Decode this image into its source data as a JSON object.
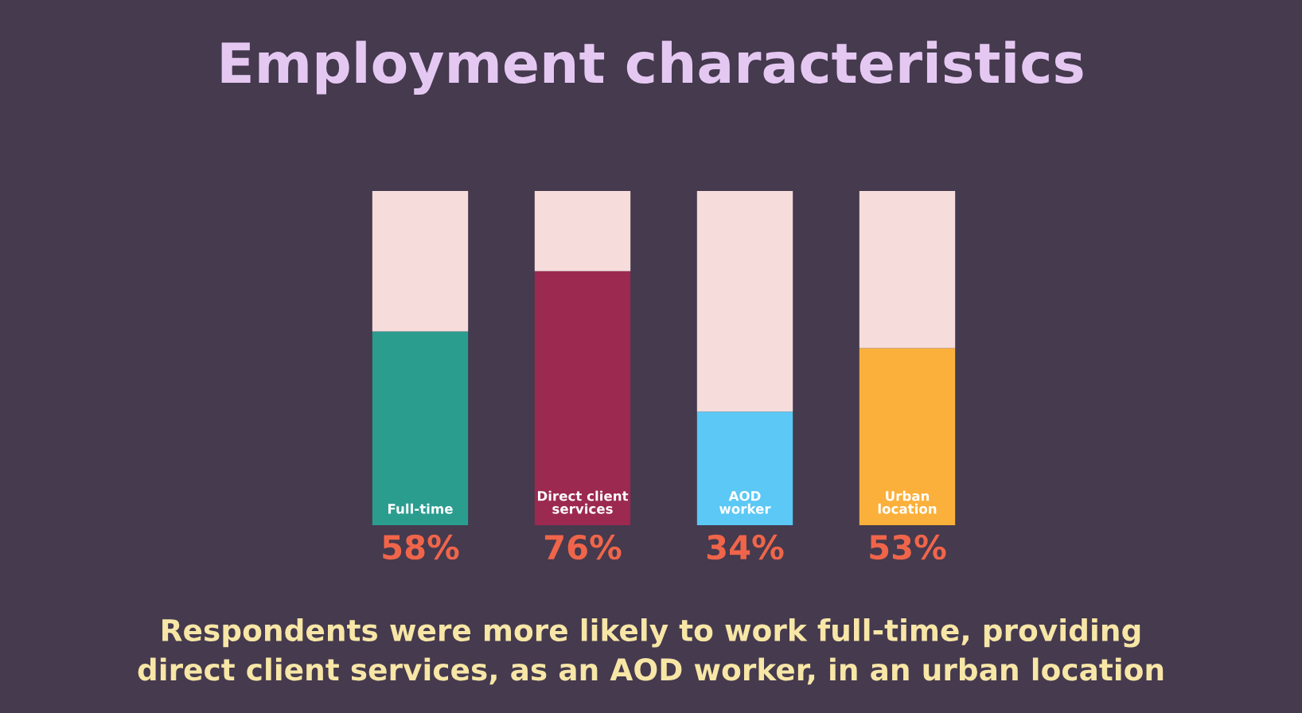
{
  "chart_data": {
    "type": "bar",
    "title": "Employment characteristics",
    "categories": [
      "Full-time",
      "Direct client\nservices",
      "AOD\nworker",
      "Urban\nlocation"
    ],
    "stacked": true,
    "ylim": [
      0,
      100
    ],
    "series": [
      {
        "colors": [
          "#2a9d8f",
          "#9b2950",
          "#5bc8f5",
          "#fbb03b"
        ],
        "values": [
          58,
          76,
          34,
          53
        ],
        "value_labels": [
          "58%",
          "76%",
          "34%",
          "53%"
        ]
      },
      {
        "color": "#f6dcda",
        "values": [
          42,
          24,
          66,
          47
        ]
      }
    ],
    "annotations": [
      "Respondents were more likely to work full-time, providing\ndirect client services, as an AOD worker, in an urban location"
    ]
  }
}
